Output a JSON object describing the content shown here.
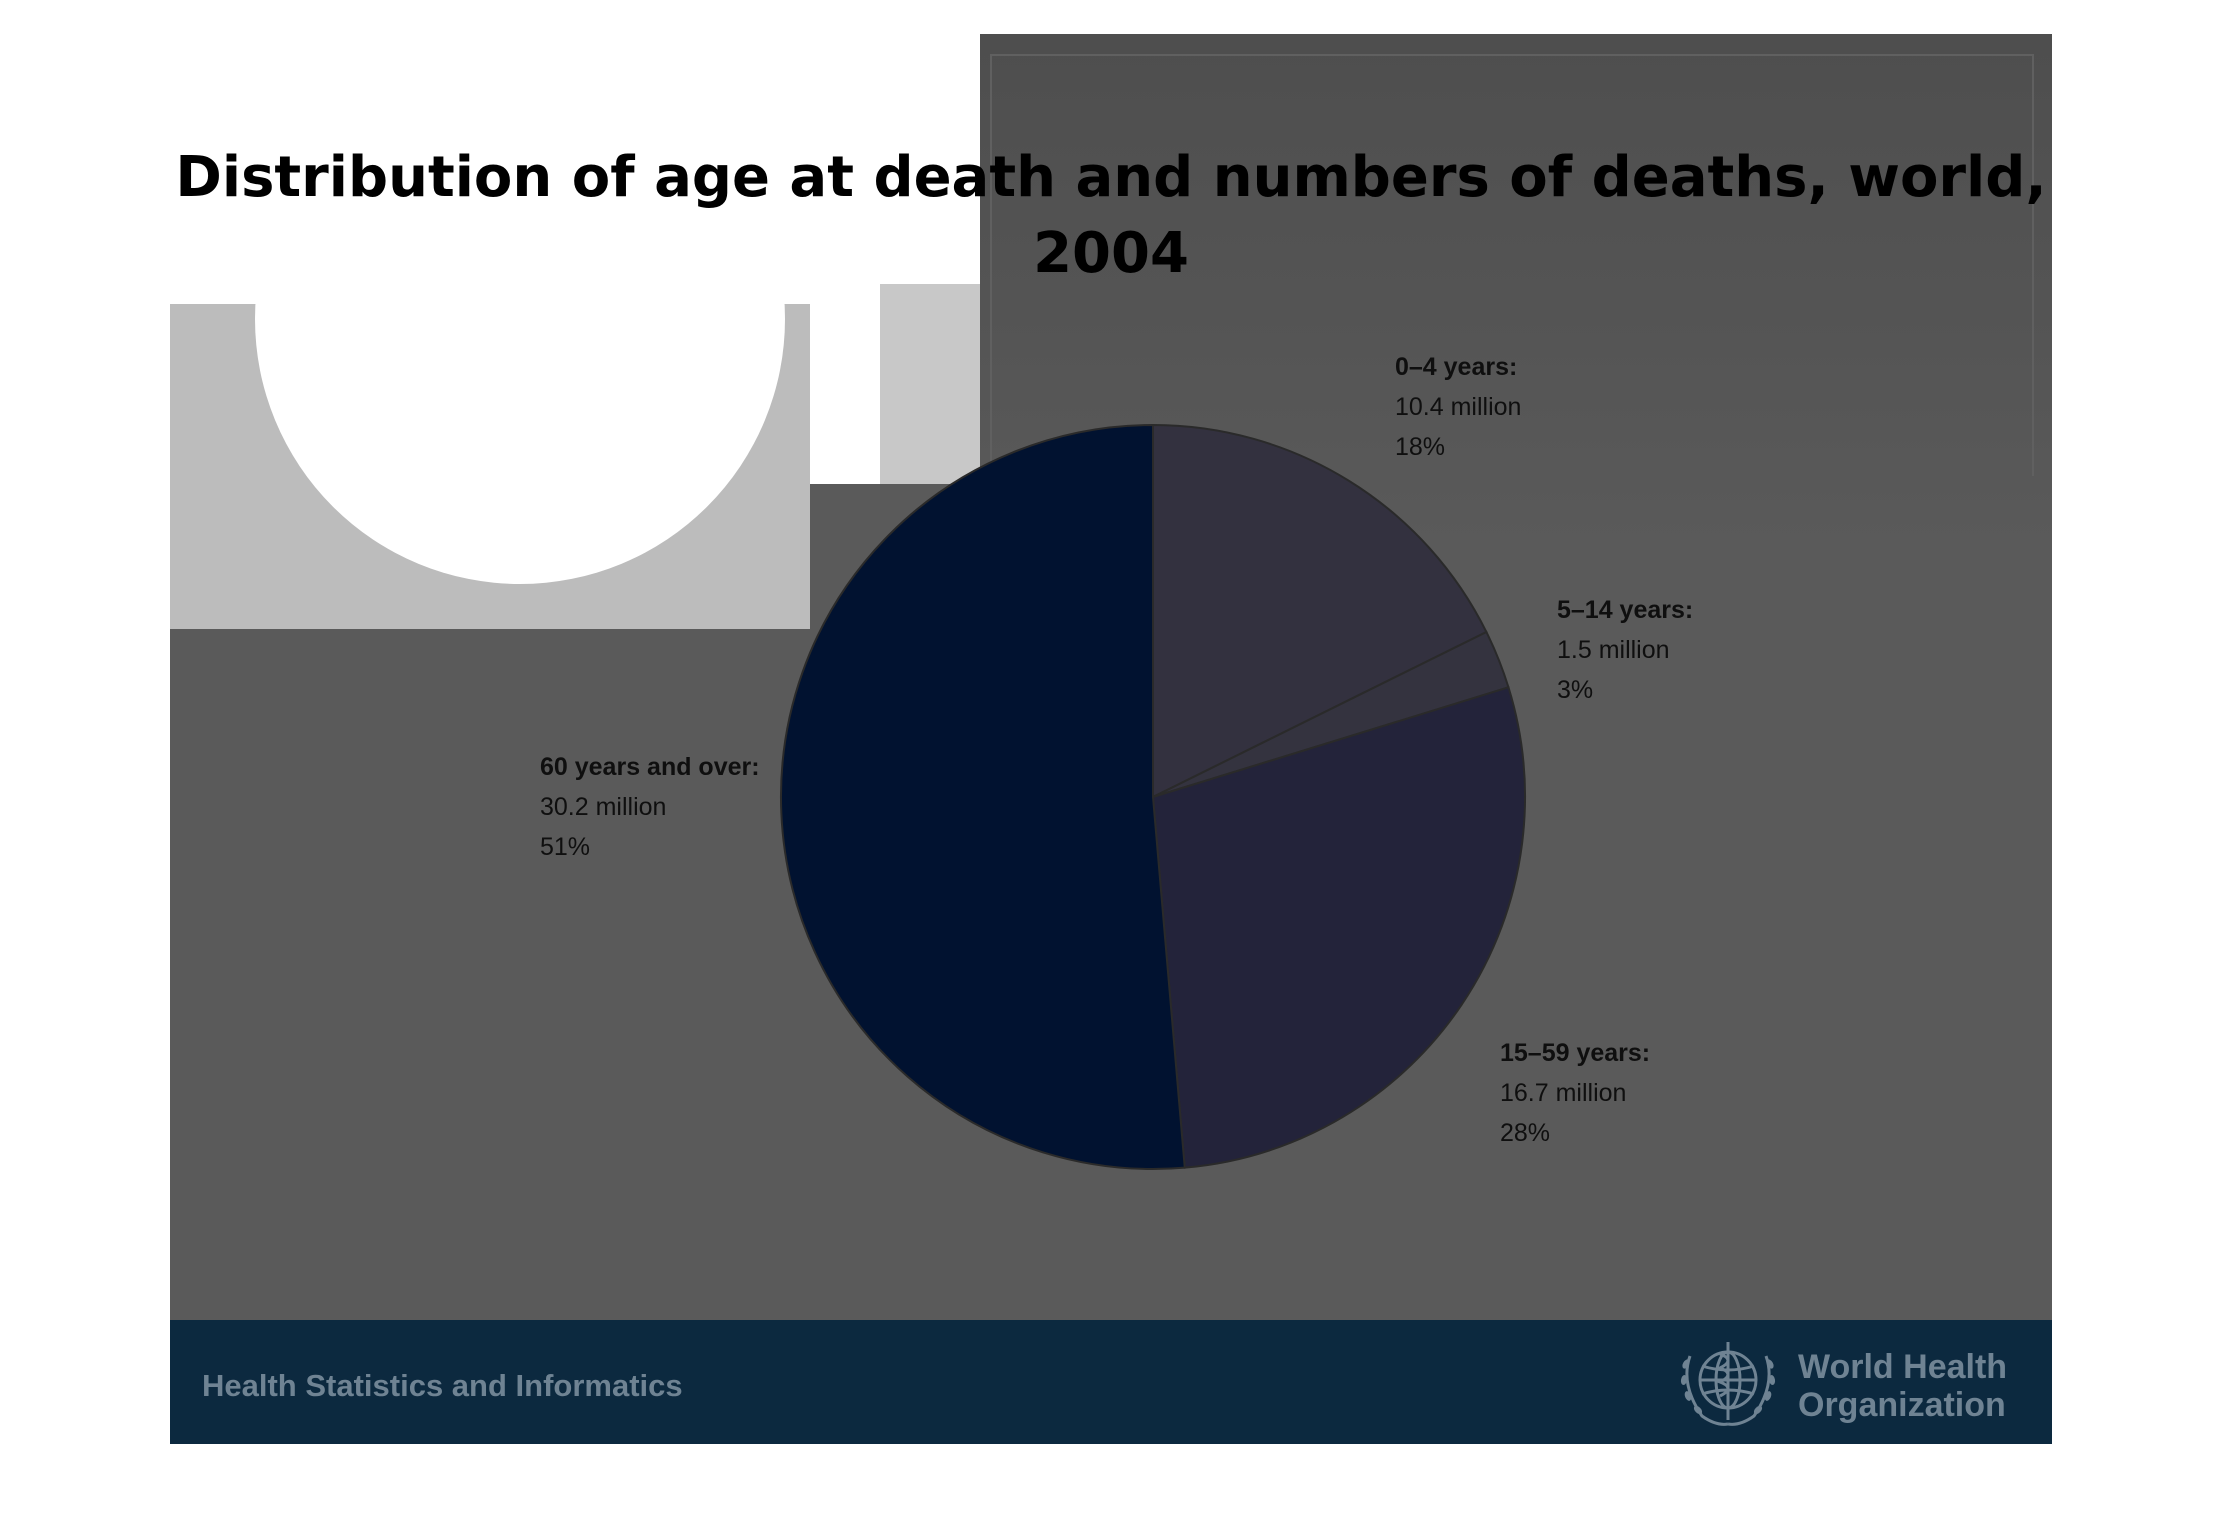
{
  "title": "Distribution of age at death and numbers of deaths, world, 2004",
  "footer": {
    "left_text": "Health Statistics and Informatics",
    "org_line1": "World Health",
    "org_line2": "Organization",
    "emblem_icon": "who-emblem-icon",
    "text_color": "#6f8393",
    "bar_color": "#0c293f"
  },
  "chart_data": {
    "type": "pie",
    "title": "Distribution of age at death and numbers of deaths, world, 2004",
    "slices": [
      {
        "label": "0–4 years:",
        "value_text": "10.4 million",
        "pct_text": "18%",
        "value": 10.4,
        "color": "#33313f"
      },
      {
        "label": "5–14 years:",
        "value_text": "1.5 million",
        "pct_text": "3%",
        "value": 1.5,
        "color": "#34333f"
      },
      {
        "label": "15–59 years:",
        "value_text": "16.7 million",
        "pct_text": "28%",
        "value": 16.7,
        "color": "#23233a"
      },
      {
        "label": "60 years and over:",
        "value_text": "30.2 million",
        "pct_text": "51%",
        "value": 30.2,
        "color": "#011230"
      }
    ],
    "start_angle": "12 o'clock",
    "direction": "clockwise",
    "legend": "none"
  }
}
